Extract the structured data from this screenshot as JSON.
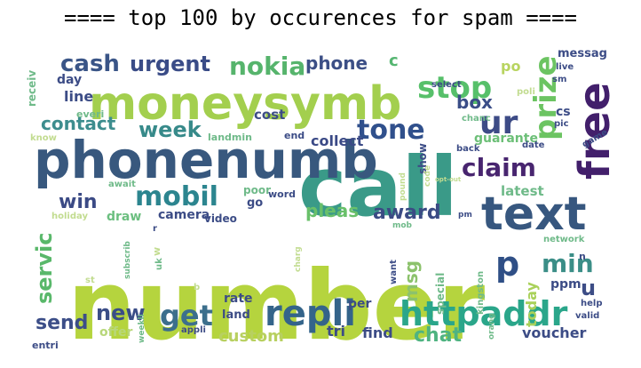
{
  "figure": {
    "title": "==== top 100 by occurences for spam ===="
  },
  "wordcloud": {
    "words": [
      {
        "text": "number",
        "color": "#b5d43e"
      },
      {
        "text": "call",
        "color": "#3a9a88"
      },
      {
        "text": "moneysymb",
        "color": "#a3cf4e"
      },
      {
        "text": "phonenumb",
        "color": "#38587e"
      },
      {
        "text": "text",
        "color": "#37577f"
      },
      {
        "text": "free",
        "color": "#421f6b"
      },
      {
        "text": "httpaddr",
        "color": "#2aa68a"
      },
      {
        "text": "repli",
        "color": "#34648a"
      },
      {
        "text": "stop",
        "color": "#57c06a"
      },
      {
        "text": "claim",
        "color": "#48256f"
      },
      {
        "text": "prize",
        "color": "#6cc462"
      },
      {
        "text": "mobil",
        "color": "#2c858f"
      },
      {
        "text": "ur",
        "color": "#3d4b86"
      },
      {
        "text": "tone",
        "color": "#30508c"
      },
      {
        "text": "cash",
        "color": "#3a5587"
      },
      {
        "text": "urgent",
        "color": "#3a4c87"
      },
      {
        "text": "nokia",
        "color": "#56b46c"
      },
      {
        "text": "phone",
        "color": "#3c4f86"
      },
      {
        "text": "week",
        "color": "#378a8a"
      },
      {
        "text": "contact",
        "color": "#3d8d8e"
      },
      {
        "text": "p",
        "color": "#2f4f86"
      },
      {
        "text": "min",
        "color": "#3b8e87"
      },
      {
        "text": "award",
        "color": "#3b4b84"
      },
      {
        "text": "get",
        "color": "#3c6f8c"
      },
      {
        "text": "new",
        "color": "#3a4d87"
      },
      {
        "text": "send",
        "color": "#3c4e88"
      },
      {
        "text": "servic",
        "color": "#59b86a"
      },
      {
        "text": "win",
        "color": "#3b4a85"
      },
      {
        "text": "pleas",
        "color": "#69c06a"
      },
      {
        "text": "box",
        "color": "#3a4d87"
      },
      {
        "text": "chat",
        "color": "#4fb381"
      },
      {
        "text": "u",
        "color": "#3d4d86"
      },
      {
        "text": "msg",
        "color": "#8cc26c"
      },
      {
        "text": "custom",
        "color": "#b8d060"
      },
      {
        "text": "cost",
        "color": "#3c4c86"
      },
      {
        "text": "collect",
        "color": "#3b4a86"
      },
      {
        "text": "c",
        "color": "#55b671"
      },
      {
        "text": "line",
        "color": "#3c4c86"
      },
      {
        "text": "day",
        "color": "#3c4c86"
      },
      {
        "text": "offer",
        "color": "#b8d77a"
      },
      {
        "text": "voucher",
        "color": "#3c4c86"
      },
      {
        "text": "find",
        "color": "#3c4c86"
      },
      {
        "text": "tri",
        "color": "#3c4c86"
      },
      {
        "text": "today",
        "color": "#a9d15a"
      },
      {
        "text": "cs",
        "color": "#3c4c86"
      },
      {
        "text": "ppm",
        "color": "#3c4c86"
      },
      {
        "text": "latest",
        "color": "#6fba89"
      },
      {
        "text": "messag",
        "color": "#3c4c86"
      },
      {
        "text": "guarante",
        "color": "#6cbf77"
      },
      {
        "text": "po",
        "color": "#b8d460"
      },
      {
        "text": "show",
        "color": "#3c4c86"
      },
      {
        "text": "camera",
        "color": "#3c4c86"
      },
      {
        "text": "draw",
        "color": "#6cbf80"
      },
      {
        "text": "rate",
        "color": "#3c4c86"
      },
      {
        "text": "land",
        "color": "#3c4c86"
      },
      {
        "text": "per",
        "color": "#3c4c86"
      },
      {
        "text": "special",
        "color": "#6fba89"
      },
      {
        "text": "receiv",
        "color": "#6fba89"
      },
      {
        "text": "video",
        "color": "#3c4c86"
      },
      {
        "text": "go",
        "color": "#3c4c86"
      },
      {
        "text": "poor",
        "color": "#6fba89"
      },
      {
        "text": "word",
        "color": "#3c4c86"
      },
      {
        "text": "landmin",
        "color": "#6fba89"
      },
      {
        "text": "end",
        "color": "#3c4c86"
      },
      {
        "text": "everi",
        "color": "#6fba89"
      },
      {
        "text": "know",
        "color": "#c2dc90"
      },
      {
        "text": "entri",
        "color": "#3c4c86"
      },
      {
        "text": "live",
        "color": "#3c4c86"
      },
      {
        "text": "sm",
        "color": "#3c4c86"
      },
      {
        "text": "poli",
        "color": "#c2dc90"
      },
      {
        "text": "select",
        "color": "#3c4c86"
      },
      {
        "text": "chanc",
        "color": "#6fba89"
      },
      {
        "text": "pic",
        "color": "#3c4c86"
      },
      {
        "text": "back",
        "color": "#3c4c86"
      },
      {
        "text": "date",
        "color": "#3c4c86"
      },
      {
        "text": "game",
        "color": "#3c4c86"
      },
      {
        "text": "code",
        "color": "#c2dc90"
      },
      {
        "text": "pound",
        "color": "#c2dc90"
      },
      {
        "text": "await",
        "color": "#6fba89"
      },
      {
        "text": "opt-out",
        "color": "#c2dc90"
      },
      {
        "text": "holiday",
        "color": "#c2dc90"
      },
      {
        "text": "mob",
        "color": "#6fba89"
      },
      {
        "text": "pm",
        "color": "#3c4c86"
      },
      {
        "text": "network",
        "color": "#6fba89"
      },
      {
        "text": "want",
        "color": "#3c4c86"
      },
      {
        "text": "kingston",
        "color": "#6fba89"
      },
      {
        "text": "n",
        "color": "#3c4c86"
      },
      {
        "text": "help",
        "color": "#3c4c86"
      },
      {
        "text": "valid",
        "color": "#3c4c86"
      },
      {
        "text": "orang",
        "color": "#6fba89"
      },
      {
        "text": "r",
        "color": "#3c4c86"
      },
      {
        "text": "charg",
        "color": "#c2dc90"
      },
      {
        "text": "subscrib",
        "color": "#6fba89"
      },
      {
        "text": "uk",
        "color": "#6fba89"
      },
      {
        "text": "w",
        "color": "#c2dc90"
      },
      {
        "text": "b",
        "color": "#c2dc90"
      },
      {
        "text": "st",
        "color": "#c2dc90"
      },
      {
        "text": "appli",
        "color": "#3c4c86"
      },
      {
        "text": "weekli",
        "color": "#6fba89"
      }
    ]
  }
}
